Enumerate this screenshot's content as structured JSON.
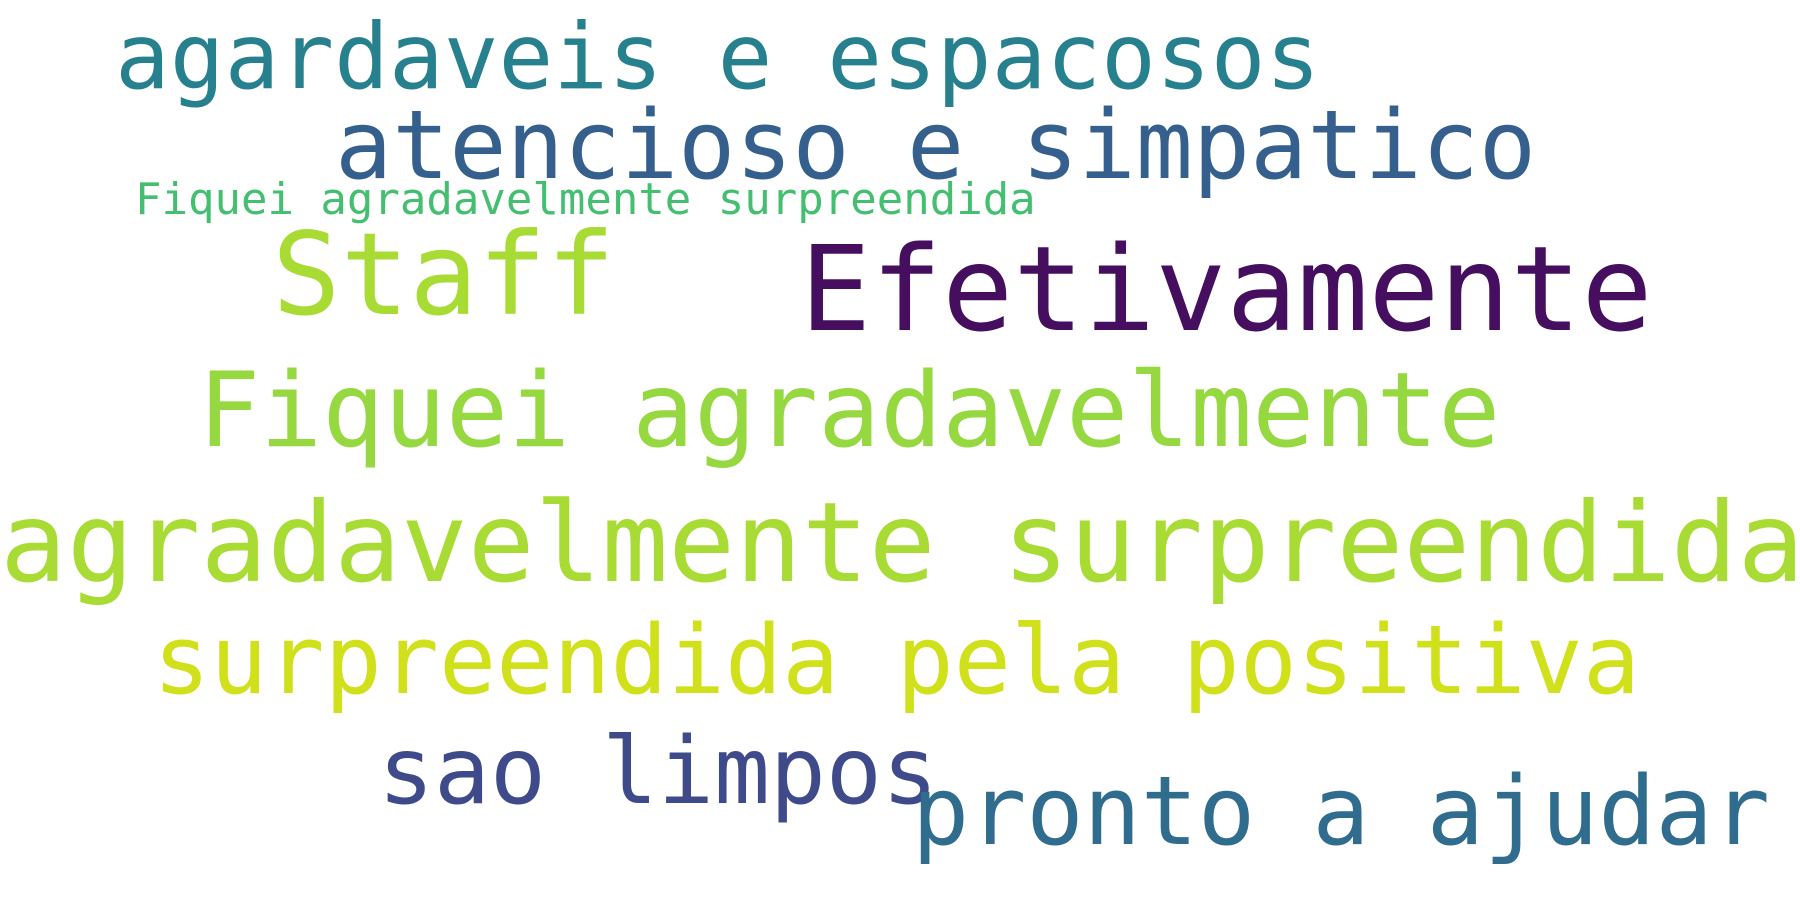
{
  "words": [
    {
      "text": "agardaveis e espacosos",
      "color": "#27808e"
    },
    {
      "text": "atencioso e simpatico",
      "color": "#355f8d"
    },
    {
      "text": "Fiquei agradavelmente surpreendida",
      "color": "#44bf70"
    },
    {
      "text": "Staff",
      "color": "#a8db34"
    },
    {
      "text": "Efetivamente",
      "color": "#450e5f"
    },
    {
      "text": "Fiquei agradavelmente",
      "color": "#95d840"
    },
    {
      "text": "agradavelmente surpreendida",
      "color": "#a8db34"
    },
    {
      "text": "surpreendida pela positiva",
      "color": "#d0e11c"
    },
    {
      "text": "sao limpos",
      "color": "#3e4a89"
    },
    {
      "text": "pronto a ajudar",
      "color": "#2f6c8e"
    }
  ]
}
